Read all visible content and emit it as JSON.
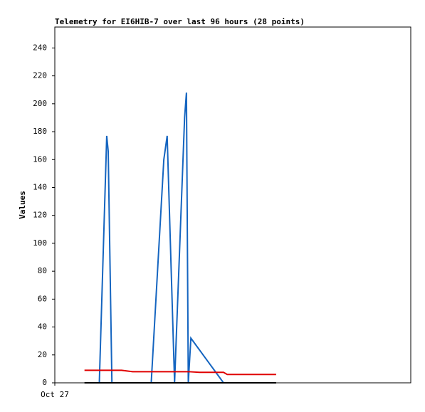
{
  "chart_data": {
    "type": "line",
    "title": "Telemetry for EI6HIB-7 over last 96 hours (28 points)",
    "y_label": "Values",
    "xlim": [
      0,
      96
    ],
    "xticks": [
      {
        "value": 0,
        "label": "Oct 27"
      }
    ],
    "ylim": [
      0,
      255
    ],
    "yticks": [
      0,
      20,
      40,
      60,
      80,
      100,
      120,
      140,
      160,
      180,
      200,
      220,
      240
    ],
    "series": [
      {
        "color": "#1565c0",
        "x": [
          12,
          14,
          14.4,
          15.4,
          26,
          29.4,
          30.3,
          32.3,
          35,
          35.5,
          36,
          36.7,
          45.5
        ],
        "values": [
          0,
          177,
          166,
          0,
          0,
          160,
          177,
          0,
          190,
          208,
          0,
          32,
          0
        ]
      },
      {
        "color": "#e00000",
        "x": [
          8,
          18,
          21,
          36,
          39,
          45.5,
          46.5,
          59.7
        ],
        "values": [
          9,
          9,
          8,
          8,
          7.5,
          7.5,
          6,
          6
        ]
      },
      {
        "color": "#000000",
        "x": [
          8,
          59.7
        ],
        "values": [
          0,
          0
        ]
      }
    ]
  }
}
